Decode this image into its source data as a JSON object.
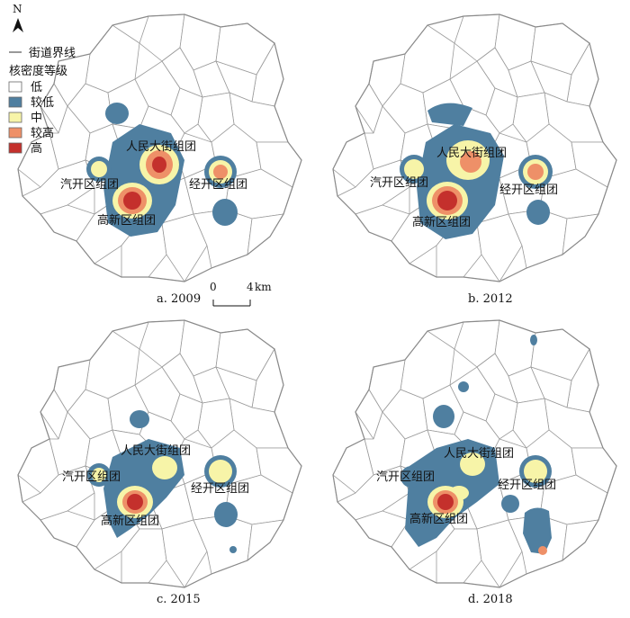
{
  "legend": {
    "north": "N",
    "boundary_label": "街道界线",
    "title": "核密度等级",
    "levels": [
      {
        "label": "低",
        "color": "#ffffff"
      },
      {
        "label": "较低",
        "color": "#4f7fa0"
      },
      {
        "label": "中",
        "color": "#f7f4a8"
      },
      {
        "label": "较高",
        "color": "#ee9068"
      },
      {
        "label": "高",
        "color": "#c4302c"
      }
    ]
  },
  "scale_bar": {
    "start": "0",
    "end": "4",
    "unit": "km"
  },
  "cluster_names": {
    "renmin": "人民大街组团",
    "qikai": "汽开区组团",
    "jingkai": "经开区组团",
    "gaoxin": "高新区组团"
  },
  "panels": [
    {
      "caption": "a. 2009"
    },
    {
      "caption": "b. 2012"
    },
    {
      "caption": "c. 2015"
    },
    {
      "caption": "d. 2018"
    }
  ]
}
